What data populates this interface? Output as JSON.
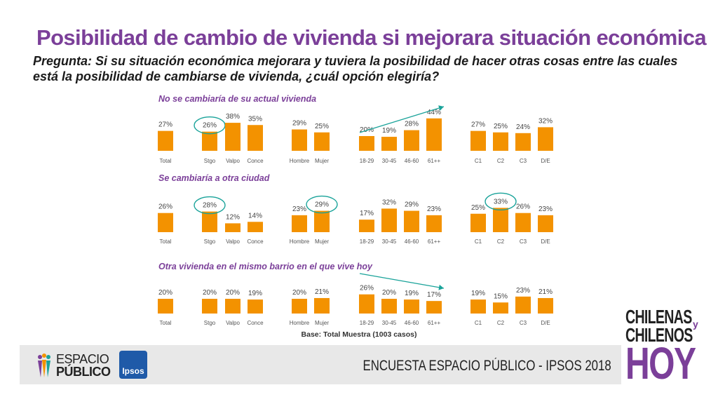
{
  "title": "Posibilidad de cambio de vivienda si mejorara situación económica",
  "question": "Pregunta: Si su situación económica mejorara y tuviera la posibilidad de hacer otras cosas entre las cuales está la posibilidad de cambiarse de vivienda, ¿cuál opción elegiría?",
  "base_note": "Base: Total Muestra (1003 casos)",
  "colors": {
    "bar": "#f39200",
    "title": "#7b3f99",
    "highlight": "#1aa39a"
  },
  "chart_data": [
    {
      "type": "bar",
      "title": "No se cambiaría de su actual vivienda",
      "categories": [
        "Total",
        "Stgo",
        "Valpo",
        "Conce",
        "Hombre",
        "Mujer",
        "18-29",
        "30-45",
        "46-60",
        "61++",
        "C1",
        "C2",
        "C3",
        "D/E"
      ],
      "values": [
        27,
        26,
        38,
        35,
        29,
        25,
        20,
        19,
        28,
        44,
        27,
        25,
        24,
        32
      ],
      "labels": [
        "27%",
        "26%",
        "38%",
        "35%",
        "29%",
        "25%",
        "20%",
        "19%",
        "28%",
        "44%",
        "27%",
        "25%",
        "24%",
        "32%"
      ],
      "highlighted": [
        "Stgo"
      ],
      "trend_arrow": "18-29 to 61++ (increasing)"
    },
    {
      "type": "bar",
      "title": "Se cambiaría a otra ciudad",
      "categories": [
        "Total",
        "Stgo",
        "Valpo",
        "Conce",
        "Hombre",
        "Mujer",
        "18-29",
        "30-45",
        "46-60",
        "61++",
        "C1",
        "C2",
        "C3",
        "D/E"
      ],
      "values": [
        26,
        28,
        12,
        14,
        23,
        29,
        17,
        32,
        29,
        23,
        25,
        33,
        26,
        23
      ],
      "labels": [
        "26%",
        "28%",
        "12%",
        "14%",
        "23%",
        "29%",
        "17%",
        "32%",
        "29%",
        "23%",
        "25%",
        "33%",
        "26%",
        "23%"
      ],
      "highlighted": [
        "Stgo",
        "Mujer",
        "C2"
      ]
    },
    {
      "type": "bar",
      "title": "Otra vivienda en el mismo barrio en el que vive hoy",
      "categories": [
        "Total",
        "Stgo",
        "Valpo",
        "Conce",
        "Hombre",
        "Mujer",
        "18-29",
        "30-45",
        "46-60",
        "61++",
        "C1",
        "C2",
        "C3",
        "D/E"
      ],
      "values": [
        20,
        20,
        20,
        19,
        20,
        21,
        26,
        20,
        19,
        17,
        19,
        15,
        23,
        21
      ],
      "labels": [
        "20%",
        "20%",
        "20%",
        "19%",
        "20%",
        "21%",
        "26%",
        "20%",
        "19%",
        "17%",
        "19%",
        "15%",
        "23%",
        "21%"
      ],
      "highlighted": [],
      "trend_arrow": "18-29 to 61++ (decreasing)"
    }
  ],
  "footer": {
    "survey": "ENCUESTA ESPACIO PÚBLICO - IPSOS 2018",
    "logo_espacio_line1": "ESPACIO",
    "logo_espacio_line2": "PÚBLICO",
    "logo_ipsos": "Ipsos"
  },
  "brand": {
    "line1": "CHILENAS",
    "connector": "y",
    "line2": "CHILENOS",
    "line3": "HOY"
  }
}
